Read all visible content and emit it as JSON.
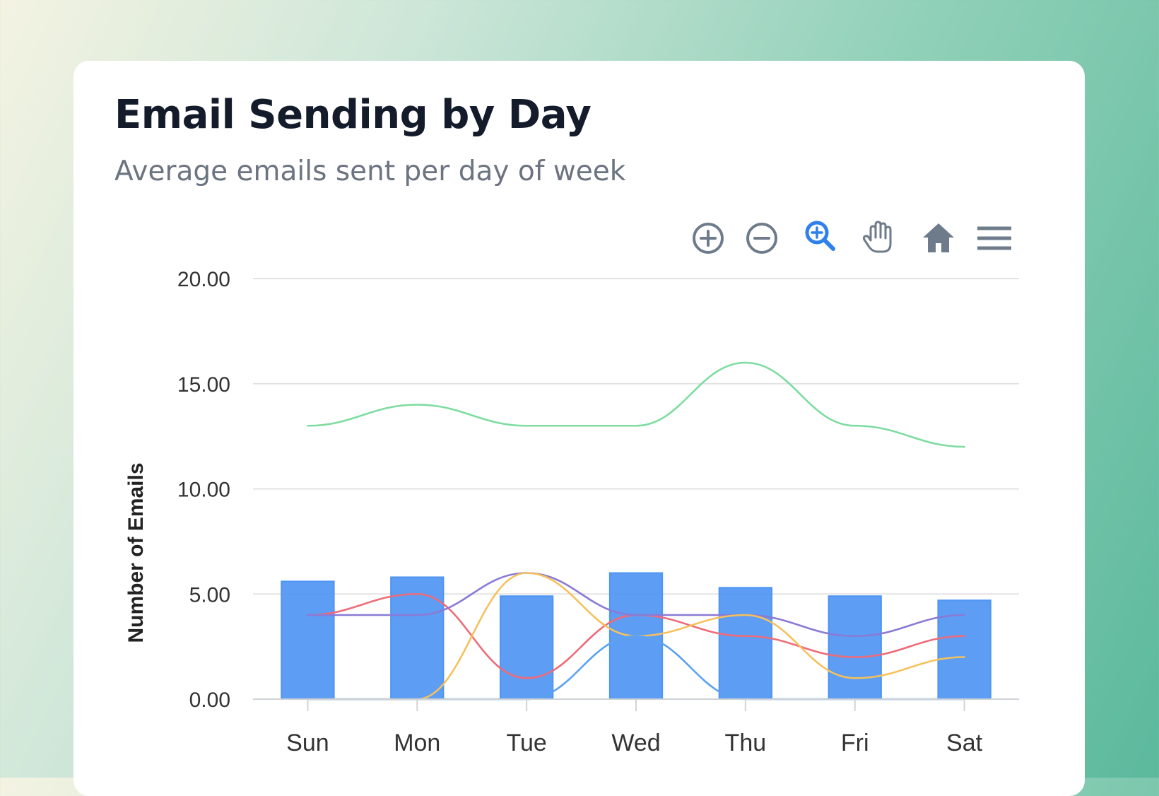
{
  "header": {
    "title": "Email Sending by Day",
    "subtitle": "Average emails sent per day of week"
  },
  "toolbar": {
    "tools": [
      {
        "name": "zoom-in-icon",
        "active": false
      },
      {
        "name": "zoom-out-icon",
        "active": false
      },
      {
        "name": "selection-zoom-icon",
        "active": true
      },
      {
        "name": "pan-hand-icon",
        "active": false
      },
      {
        "name": "home-reset-icon",
        "active": false
      },
      {
        "name": "menu-icon",
        "active": false
      }
    ],
    "color_default": "#6e7b8b",
    "color_active": "#2f80ed"
  },
  "chart_data": {
    "type": "bar",
    "categories": [
      "Sun",
      "Mon",
      "Tue",
      "Wed",
      "Thu",
      "Fri",
      "Sat"
    ],
    "ylabel": "Number of Emails",
    "ylim": [
      0,
      20
    ],
    "yticks": [
      "0.00",
      "5.00",
      "10.00",
      "15.00",
      "20.00"
    ],
    "grid": true,
    "series": [
      {
        "type": "bar",
        "color": "#4f95f2",
        "values": [
          5.6,
          5.8,
          4.9,
          6.0,
          5.3,
          4.9,
          4.7
        ]
      },
      {
        "type": "line",
        "color": "#7ddc9f",
        "values": [
          13,
          14,
          13,
          13,
          16,
          13,
          12
        ]
      },
      {
        "type": "line",
        "color": "#ee6b79",
        "values": [
          4,
          5,
          1,
          4,
          3,
          2,
          3
        ]
      },
      {
        "type": "line",
        "color": "#8a7ad6",
        "values": [
          4,
          4,
          6,
          4,
          4,
          3,
          4
        ]
      },
      {
        "type": "line",
        "color": "#f5c15d",
        "values": [
          0,
          0,
          6,
          3,
          4,
          1,
          2
        ]
      },
      {
        "type": "line",
        "color": "#5aa2f0",
        "values": [
          0,
          0,
          0,
          3,
          0,
          0,
          0
        ]
      }
    ]
  }
}
